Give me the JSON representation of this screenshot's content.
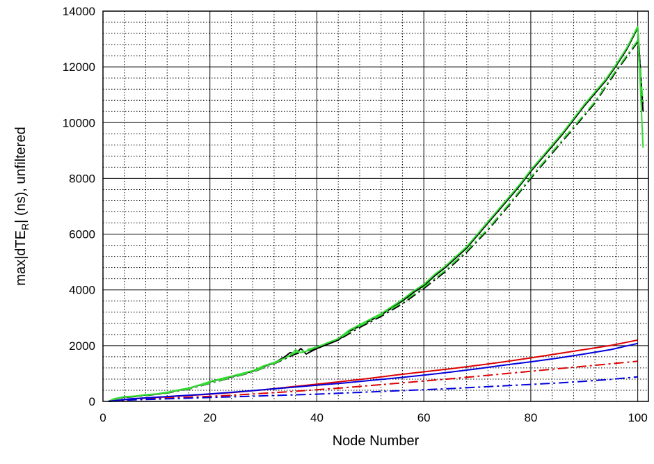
{
  "chart_data": {
    "type": "line",
    "title": "",
    "xlabel": "Node Number",
    "ylabel": {
      "prefix": "max|dTE",
      "subscript": "R",
      "suffix": "| (ns), unfiltered"
    },
    "xlim": [
      0,
      102
    ],
    "ylim": [
      0,
      14000
    ],
    "x_major_ticks": [
      0,
      20,
      40,
      60,
      80,
      100
    ],
    "y_major_ticks": [
      0,
      2000,
      4000,
      6000,
      8000,
      10000,
      12000,
      14000
    ],
    "y_minor_step": 400,
    "x_minor_step": 4,
    "grid": "major solid, minor dotted",
    "legend": "none",
    "series": [
      {
        "color": "#000000",
        "dash": "solid",
        "points": [
          [
            1,
            0
          ],
          [
            2,
            80
          ],
          [
            4,
            160
          ],
          [
            6,
            180
          ],
          [
            8,
            230
          ],
          [
            10,
            260
          ],
          [
            12,
            320
          ],
          [
            14,
            400
          ],
          [
            16,
            470
          ],
          [
            18,
            580
          ],
          [
            20,
            700
          ],
          [
            22,
            800
          ],
          [
            24,
            880
          ],
          [
            26,
            980
          ],
          [
            28,
            1080
          ],
          [
            30,
            1250
          ],
          [
            32,
            1380
          ],
          [
            34,
            1600
          ],
          [
            35,
            1750
          ],
          [
            36,
            1700
          ],
          [
            37,
            1900
          ],
          [
            38,
            1700
          ],
          [
            40,
            1900
          ],
          [
            42,
            2050
          ],
          [
            44,
            2200
          ],
          [
            46,
            2500
          ],
          [
            48,
            2700
          ],
          [
            50,
            2900
          ],
          [
            52,
            3100
          ],
          [
            54,
            3350
          ],
          [
            56,
            3600
          ],
          [
            58,
            3900
          ],
          [
            60,
            4150
          ],
          [
            62,
            4500
          ],
          [
            64,
            4800
          ],
          [
            66,
            5150
          ],
          [
            68,
            5500
          ],
          [
            70,
            5950
          ],
          [
            72,
            6400
          ],
          [
            74,
            6850
          ],
          [
            76,
            7300
          ],
          [
            78,
            7750
          ],
          [
            80,
            8250
          ],
          [
            82,
            8700
          ],
          [
            84,
            9150
          ],
          [
            86,
            9600
          ],
          [
            88,
            10100
          ],
          [
            90,
            10600
          ],
          [
            92,
            11050
          ],
          [
            94,
            11500
          ],
          [
            96,
            12050
          ],
          [
            98,
            12650
          ],
          [
            100,
            13400
          ],
          [
            101,
            10400
          ]
        ]
      },
      {
        "color": "#000000",
        "dash": "dashdot",
        "points": [
          [
            1,
            0
          ],
          [
            4,
            140
          ],
          [
            8,
            210
          ],
          [
            12,
            300
          ],
          [
            16,
            440
          ],
          [
            20,
            650
          ],
          [
            24,
            850
          ],
          [
            28,
            1050
          ],
          [
            32,
            1350
          ],
          [
            36,
            1700
          ],
          [
            40,
            1900
          ],
          [
            44,
            2200
          ],
          [
            48,
            2650
          ],
          [
            52,
            3050
          ],
          [
            56,
            3500
          ],
          [
            60,
            4050
          ],
          [
            64,
            4650
          ],
          [
            68,
            5350
          ],
          [
            72,
            6150
          ],
          [
            76,
            7050
          ],
          [
            80,
            8000
          ],
          [
            84,
            8900
          ],
          [
            88,
            9800
          ],
          [
            92,
            10700
          ],
          [
            96,
            11850
          ],
          [
            100,
            12900
          ],
          [
            101,
            10600
          ]
        ]
      },
      {
        "color": "#33dd33",
        "dash": "solid",
        "points": [
          [
            1,
            0
          ],
          [
            2,
            90
          ],
          [
            4,
            170
          ],
          [
            6,
            190
          ],
          [
            8,
            240
          ],
          [
            10,
            270
          ],
          [
            12,
            330
          ],
          [
            14,
            410
          ],
          [
            16,
            480
          ],
          [
            18,
            590
          ],
          [
            20,
            710
          ],
          [
            22,
            810
          ],
          [
            24,
            900
          ],
          [
            26,
            1000
          ],
          [
            28,
            1100
          ],
          [
            30,
            1270
          ],
          [
            32,
            1400
          ],
          [
            34,
            1550
          ],
          [
            35,
            1650
          ],
          [
            36,
            1850
          ],
          [
            37,
            1750
          ],
          [
            38,
            1800
          ],
          [
            40,
            1950
          ],
          [
            42,
            2100
          ],
          [
            44,
            2250
          ],
          [
            46,
            2550
          ],
          [
            48,
            2750
          ],
          [
            50,
            2950
          ],
          [
            52,
            3150
          ],
          [
            54,
            3400
          ],
          [
            56,
            3650
          ],
          [
            58,
            3950
          ],
          [
            60,
            4200
          ],
          [
            62,
            4550
          ],
          [
            64,
            4850
          ],
          [
            66,
            5200
          ],
          [
            68,
            5550
          ],
          [
            70,
            6000
          ],
          [
            72,
            6450
          ],
          [
            74,
            6900
          ],
          [
            76,
            7350
          ],
          [
            78,
            7800
          ],
          [
            80,
            8300
          ],
          [
            82,
            8750
          ],
          [
            84,
            9200
          ],
          [
            86,
            9650
          ],
          [
            88,
            10150
          ],
          [
            90,
            10650
          ],
          [
            92,
            11100
          ],
          [
            94,
            11550
          ],
          [
            96,
            12100
          ],
          [
            98,
            12700
          ],
          [
            100,
            13450
          ],
          [
            101,
            9100
          ]
        ]
      },
      {
        "color": "#33dd33",
        "dash": "dashdot",
        "points": [
          [
            1,
            0
          ],
          [
            4,
            150
          ],
          [
            8,
            220
          ],
          [
            12,
            310
          ],
          [
            16,
            450
          ],
          [
            20,
            660
          ],
          [
            24,
            860
          ],
          [
            28,
            1060
          ],
          [
            32,
            1360
          ],
          [
            36,
            1750
          ],
          [
            40,
            1950
          ],
          [
            44,
            2250
          ],
          [
            48,
            2700
          ],
          [
            52,
            3100
          ],
          [
            56,
            3550
          ],
          [
            60,
            4100
          ],
          [
            64,
            4700
          ],
          [
            68,
            5400
          ],
          [
            72,
            6200
          ],
          [
            76,
            7100
          ],
          [
            80,
            8050
          ],
          [
            84,
            8950
          ],
          [
            88,
            9850
          ],
          [
            92,
            10750
          ],
          [
            96,
            11900
          ],
          [
            100,
            12950
          ],
          [
            101,
            10700
          ]
        ]
      },
      {
        "color": "#dd0000",
        "dash": "solid",
        "points": [
          [
            1,
            0
          ],
          [
            5,
            80
          ],
          [
            10,
            140
          ],
          [
            15,
            200
          ],
          [
            20,
            260
          ],
          [
            25,
            330
          ],
          [
            30,
            420
          ],
          [
            35,
            520
          ],
          [
            40,
            620
          ],
          [
            45,
            720
          ],
          [
            50,
            830
          ],
          [
            55,
            950
          ],
          [
            60,
            1060
          ],
          [
            65,
            1170
          ],
          [
            70,
            1290
          ],
          [
            75,
            1420
          ],
          [
            80,
            1560
          ],
          [
            85,
            1710
          ],
          [
            90,
            1860
          ],
          [
            95,
            2010
          ],
          [
            100,
            2200
          ]
        ]
      },
      {
        "color": "#dd0000",
        "dash": "dashdot",
        "points": [
          [
            1,
            0
          ],
          [
            5,
            60
          ],
          [
            10,
            100
          ],
          [
            15,
            140
          ],
          [
            20,
            180
          ],
          [
            25,
            230
          ],
          [
            30,
            290
          ],
          [
            35,
            350
          ],
          [
            40,
            420
          ],
          [
            45,
            490
          ],
          [
            50,
            570
          ],
          [
            55,
            650
          ],
          [
            60,
            730
          ],
          [
            65,
            810
          ],
          [
            70,
            900
          ],
          [
            75,
            990
          ],
          [
            80,
            1080
          ],
          [
            85,
            1170
          ],
          [
            90,
            1260
          ],
          [
            95,
            1350
          ],
          [
            100,
            1440
          ]
        ]
      },
      {
        "color": "#0000dd",
        "dash": "solid",
        "points": [
          [
            1,
            0
          ],
          [
            5,
            90
          ],
          [
            10,
            150
          ],
          [
            15,
            210
          ],
          [
            20,
            270
          ],
          [
            25,
            340
          ],
          [
            30,
            420
          ],
          [
            35,
            500
          ],
          [
            40,
            580
          ],
          [
            45,
            660
          ],
          [
            50,
            750
          ],
          [
            55,
            840
          ],
          [
            60,
            940
          ],
          [
            65,
            1050
          ],
          [
            70,
            1170
          ],
          [
            75,
            1300
          ],
          [
            80,
            1420
          ],
          [
            85,
            1550
          ],
          [
            90,
            1700
          ],
          [
            95,
            1860
          ],
          [
            100,
            2080
          ]
        ]
      },
      {
        "color": "#0000dd",
        "dash": "dashdot",
        "points": [
          [
            1,
            0
          ],
          [
            5,
            50
          ],
          [
            10,
            80
          ],
          [
            15,
            110
          ],
          [
            20,
            140
          ],
          [
            25,
            170
          ],
          [
            30,
            200
          ],
          [
            35,
            230
          ],
          [
            40,
            260
          ],
          [
            45,
            300
          ],
          [
            50,
            340
          ],
          [
            55,
            380
          ],
          [
            60,
            420
          ],
          [
            65,
            460
          ],
          [
            70,
            510
          ],
          [
            75,
            560
          ],
          [
            80,
            610
          ],
          [
            85,
            660
          ],
          [
            90,
            720
          ],
          [
            95,
            790
          ],
          [
            100,
            880
          ]
        ]
      }
    ]
  }
}
